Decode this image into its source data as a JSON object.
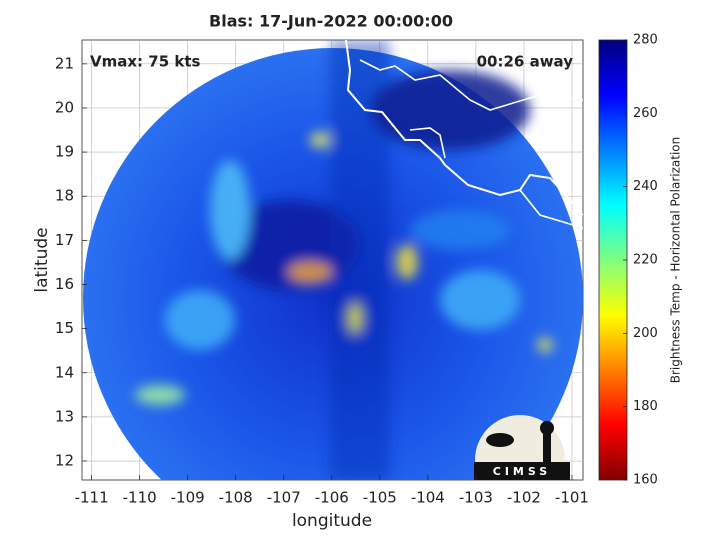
{
  "chart_data": {
    "type": "map",
    "title": "Blas: 17-Jun-2022 00:00:00",
    "annotations": [
      "Vmax: 75 kts",
      "00:26 away"
    ],
    "x_label": "longitude",
    "y_label": "latitude",
    "xlim": [
      -111.2,
      -100.77
    ],
    "ylim": [
      11.57,
      21.54
    ],
    "xticks": [
      -111,
      -110,
      -109,
      -108,
      -107,
      -106,
      -105,
      -104,
      -103,
      -102,
      -101
    ],
    "yticks": [
      12,
      13,
      14,
      15,
      16,
      17,
      18,
      19,
      20,
      21
    ],
    "grid": true,
    "colorbar": {
      "label": "Brightness Temp - Horizontal Polarization",
      "colormap": "jet",
      "clim": [
        160,
        280
      ],
      "ticks": [
        160,
        180,
        200,
        220,
        240,
        260,
        280
      ]
    },
    "logo": "CIMSS"
  }
}
